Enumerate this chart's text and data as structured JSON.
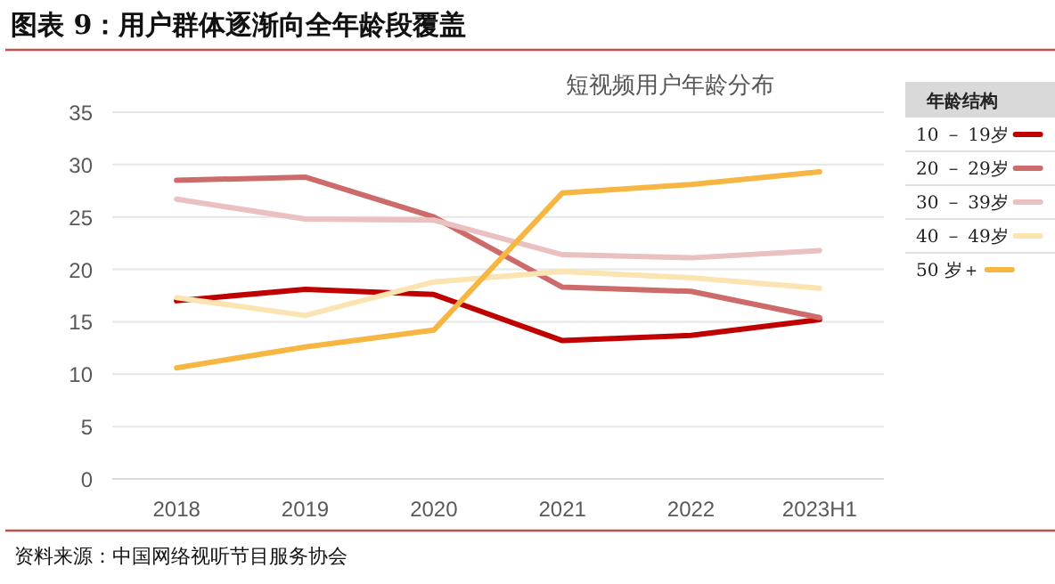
{
  "chart_data": {
    "type": "line",
    "title": "图表 9：用户群体逐渐向全年龄段覆盖",
    "subtitle": "短视频用户年龄分布",
    "legend_title": "年龄结构",
    "annotations": [
      "资料来源：中国网络视听节目服务协会"
    ],
    "categories": [
      "2018",
      "2019",
      "2020",
      "2021",
      "2022",
      "2023H1"
    ],
    "series": [
      {
        "name": "10 － 19岁",
        "color": "#c00000",
        "values": [
          17.0,
          18.1,
          17.6,
          13.2,
          13.7,
          15.2
        ]
      },
      {
        "name": "20 － 29岁",
        "color": "#cd6b6b",
        "values": [
          28.5,
          28.8,
          25.0,
          18.3,
          17.9,
          15.4
        ]
      },
      {
        "name": "30 － 39岁",
        "color": "#eac0c0",
        "values": [
          26.7,
          24.8,
          24.7,
          21.4,
          21.1,
          21.8
        ]
      },
      {
        "name": "40 － 49岁",
        "color": "#fce4b2",
        "values": [
          17.3,
          15.6,
          18.8,
          19.8,
          19.2,
          18.2
        ]
      },
      {
        "name": "50 岁＋",
        "color": "#f7b641",
        "values": [
          10.6,
          12.6,
          14.2,
          27.3,
          28.1,
          29.3
        ]
      }
    ],
    "ylim": [
      0,
      35
    ],
    "yticks": [
      0,
      5,
      10,
      15,
      20,
      25,
      30,
      35
    ],
    "grid": "y",
    "legend": "right",
    "marker": "none",
    "line_style": "solid"
  }
}
